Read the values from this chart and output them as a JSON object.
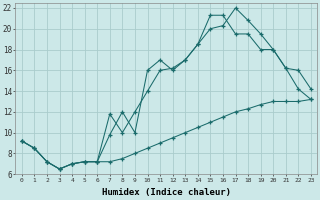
{
  "xlabel": "Humidex (Indice chaleur)",
  "bg_color": "#cce8e8",
  "grid_color": "#aacccc",
  "line_color": "#1a6b6b",
  "xlim": [
    -0.5,
    23.5
  ],
  "ylim": [
    6,
    22.5
  ],
  "yticks": [
    6,
    8,
    10,
    12,
    14,
    16,
    18,
    20,
    22
  ],
  "xticks": [
    0,
    1,
    2,
    3,
    4,
    5,
    6,
    7,
    8,
    9,
    10,
    11,
    12,
    13,
    14,
    15,
    16,
    17,
    18,
    19,
    20,
    21,
    22,
    23
  ],
  "line1_x": [
    0,
    1,
    2,
    3,
    4,
    5,
    6,
    7,
    8,
    9,
    10,
    11,
    12,
    13,
    14,
    15,
    16,
    17,
    18,
    19,
    20,
    21,
    22,
    23
  ],
  "line1_y": [
    9.2,
    8.5,
    7.2,
    6.5,
    7.0,
    7.2,
    7.2,
    7.2,
    7.5,
    8.0,
    8.5,
    9.0,
    9.5,
    10.0,
    10.5,
    11.0,
    11.5,
    12.0,
    12.3,
    12.7,
    13.0,
    13.0,
    13.0,
    13.2
  ],
  "line2_x": [
    0,
    1,
    2,
    3,
    4,
    5,
    6,
    7,
    8,
    9,
    10,
    11,
    12,
    13,
    14,
    15,
    16,
    17,
    18,
    19,
    20,
    21,
    22,
    23
  ],
  "line2_y": [
    9.2,
    8.5,
    7.2,
    6.5,
    7.0,
    7.2,
    7.2,
    9.8,
    12.0,
    10.0,
    16.0,
    17.0,
    16.0,
    17.0,
    18.5,
    20.0,
    20.3,
    22.0,
    20.8,
    19.5,
    18.0,
    16.2,
    14.2,
    13.2
  ],
  "line3_x": [
    0,
    1,
    2,
    3,
    4,
    5,
    6,
    7,
    8,
    9,
    10,
    11,
    12,
    13,
    14,
    15,
    16,
    17,
    18,
    19,
    20,
    21,
    22,
    23
  ],
  "line3_y": [
    9.2,
    8.5,
    7.2,
    6.5,
    7.0,
    7.2,
    7.2,
    11.8,
    10.0,
    12.0,
    14.0,
    16.0,
    16.2,
    17.0,
    18.5,
    21.3,
    21.3,
    19.5,
    19.5,
    18.0,
    18.0,
    16.2,
    16.0,
    14.2
  ]
}
